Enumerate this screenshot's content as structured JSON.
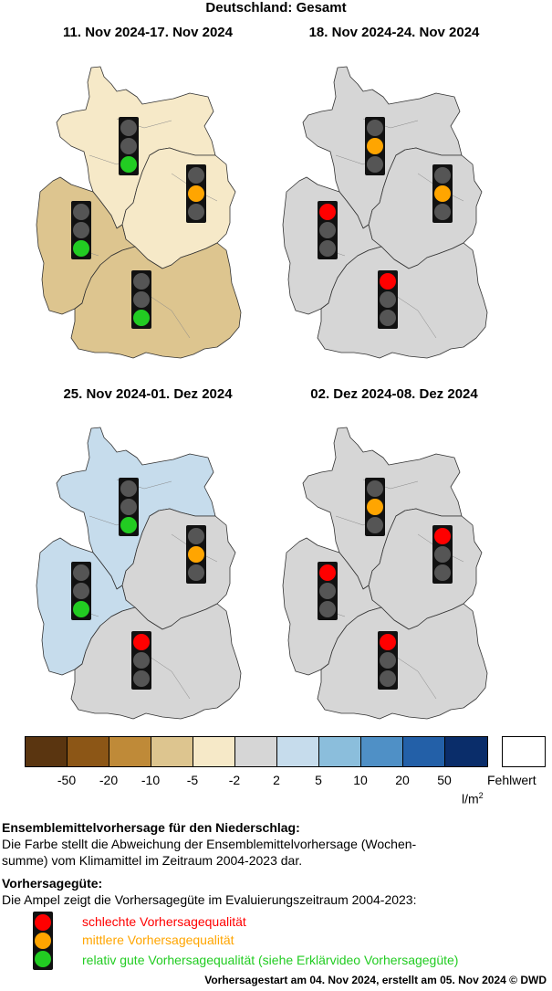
{
  "title": "Deutschland: Gesamt",
  "panels": [
    {
      "period": "11. Nov 2024-17. Nov 2024",
      "regions": {
        "north": "#f6e9c8",
        "east": "#f6e9c8",
        "west": "#ddc58f",
        "south": "#ddc58f"
      },
      "lights": {
        "north": "green",
        "east": "orange",
        "west": "green",
        "south": "green"
      }
    },
    {
      "period": "18. Nov 2024-24. Nov 2024",
      "regions": {
        "north": "#d6d6d6",
        "east": "#d6d6d6",
        "west": "#d6d6d6",
        "south": "#d6d6d6"
      },
      "lights": {
        "north": "orange",
        "east": "orange",
        "west": "red",
        "south": "red"
      }
    },
    {
      "period": "25. Nov 2024-01. Dez 2024",
      "regions": {
        "north": "#c6dcec",
        "east": "#d6d6d6",
        "west": "#c6dcec",
        "south": "#d6d6d6"
      },
      "lights": {
        "north": "green",
        "east": "orange",
        "west": "green",
        "south": "red"
      }
    },
    {
      "period": "02. Dez 2024-08. Dez 2024",
      "regions": {
        "north": "#d6d6d6",
        "east": "#d6d6d6",
        "west": "#d6d6d6",
        "south": "#d6d6d6"
      },
      "lights": {
        "north": "orange",
        "east": "red",
        "west": "red",
        "south": "red"
      }
    }
  ],
  "colors": {
    "red": "#ff0000",
    "orange": "#ffa500",
    "green": "#22cc22",
    "off": "#555555"
  },
  "legend": {
    "colors": [
      "#5a3510",
      "#8c5616",
      "#bf8a38",
      "#ddc58f",
      "#f6e9c8",
      "#d6d6d6",
      "#c6dcec",
      "#8bbedc",
      "#4f90c6",
      "#2360a8",
      "#0a2d6a"
    ],
    "ticks": [
      "-50",
      "-20",
      "-10",
      "-5",
      "-2",
      "2",
      "5",
      "10",
      "20",
      "50"
    ],
    "unit_base": "l/m",
    "unit_exp": "2",
    "missing": "Fehlwert"
  },
  "text": {
    "heading1": "Ensemblemittelvorhersage für den Niederschlag:",
    "line1": "Die Farbe stellt die Abweichung der Ensemblemittelvorhersage (Wochen-",
    "line2": "summe) vom Klimamittel im Zeitraum 2004-2023 dar.",
    "heading2": "Vorhersagegüte:",
    "line3": "Die Ampel zeigt die Vorhersagegüte im Evaluierungszeitraum 2004-2023:",
    "key_red": "schlechte Vorhersagequalität",
    "key_orange": "mittlere Vorhersagequalität",
    "key_green": "relativ gute Vorhersagequalität (siehe Erklärvideo Vorhersagegüte)"
  },
  "footer": "Vorhersagestart am 04. Nov 2024, erstellt am 05. Nov 2024 © DWD"
}
